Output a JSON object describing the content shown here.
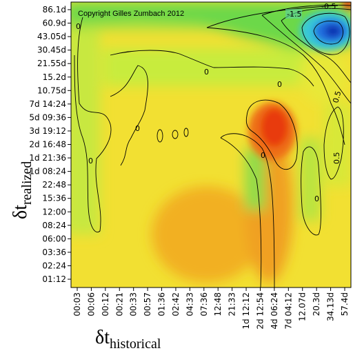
{
  "chart_data": {
    "type": "heatmap",
    "title": "",
    "copyright": "Copyright Gilles Zumbach 2012",
    "xlabel": {
      "symbol": "δt",
      "subscript": "historical"
    },
    "ylabel": {
      "symbol": "δt",
      "subscript": "realized"
    },
    "x_ticks": [
      "00:03",
      "00:06",
      "00:12",
      "00:21",
      "00:33",
      "00:57",
      "01:36",
      "02:42",
      "04:33",
      "07:36",
      "12:48",
      "21:33",
      "1d 12:12",
      "2d 12:54",
      "4d 06:24",
      "7d 04:12",
      "12.07d",
      "20.3d",
      "34.13d",
      "57.4d"
    ],
    "y_ticks": [
      "86.1d",
      "60.9d",
      "43.05d",
      "30.45d",
      "21.55d",
      "15.2d",
      "10.75d",
      "7d 14:24",
      "5d 09:36",
      "3d 19:12",
      "2d 16:48",
      "1d 21:36",
      "1d 08:24",
      "22:48",
      "15:36",
      "12:00",
      "08:24",
      "06:00",
      "03:36",
      "02:24",
      "01:12"
    ],
    "contour_labels": [
      "-1.5",
      "-0.5",
      "0",
      "0",
      "0",
      "0",
      "0",
      "0",
      "0",
      "0.5",
      "0.5"
    ],
    "color_scale": {
      "low": "#1030d0",
      "mid_low": "#40d0a0",
      "mid": "#d8f040",
      "mid_high": "#f0d020",
      "high": "#f03010"
    },
    "value_range": [
      -2,
      1
    ],
    "grid": false,
    "legend": "none"
  }
}
